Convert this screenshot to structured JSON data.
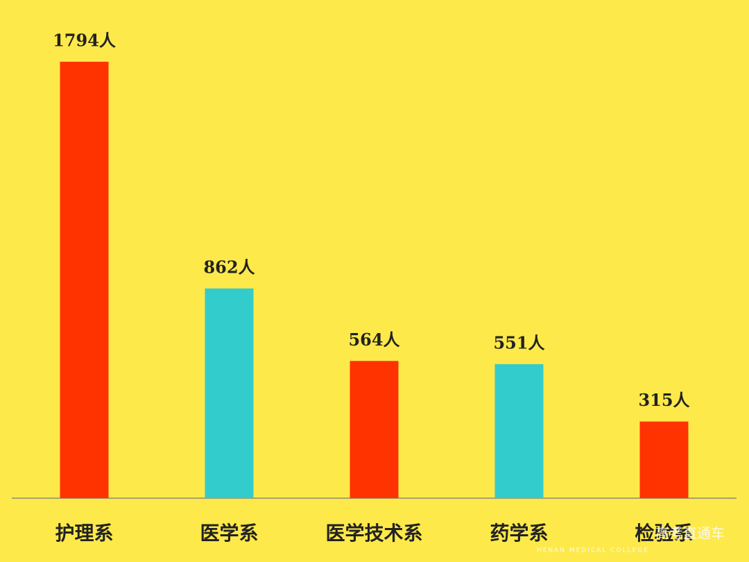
{
  "chart_data": {
    "type": "bar",
    "categories": [
      "护理系",
      "医学系",
      "医学技术系",
      "药学系",
      "检验系"
    ],
    "values": [
      1794,
      862,
      564,
      551,
      315
    ],
    "value_labels": [
      "1794人",
      "862人",
      "564人",
      "551人",
      "315人"
    ],
    "colors": [
      "#ff3300",
      "#33cccc",
      "#ff3300",
      "#33cccc",
      "#ff3300"
    ],
    "annotations": [
      "HENAN MEDICAL COLLEGE",
      "高考直通车"
    ]
  }
}
